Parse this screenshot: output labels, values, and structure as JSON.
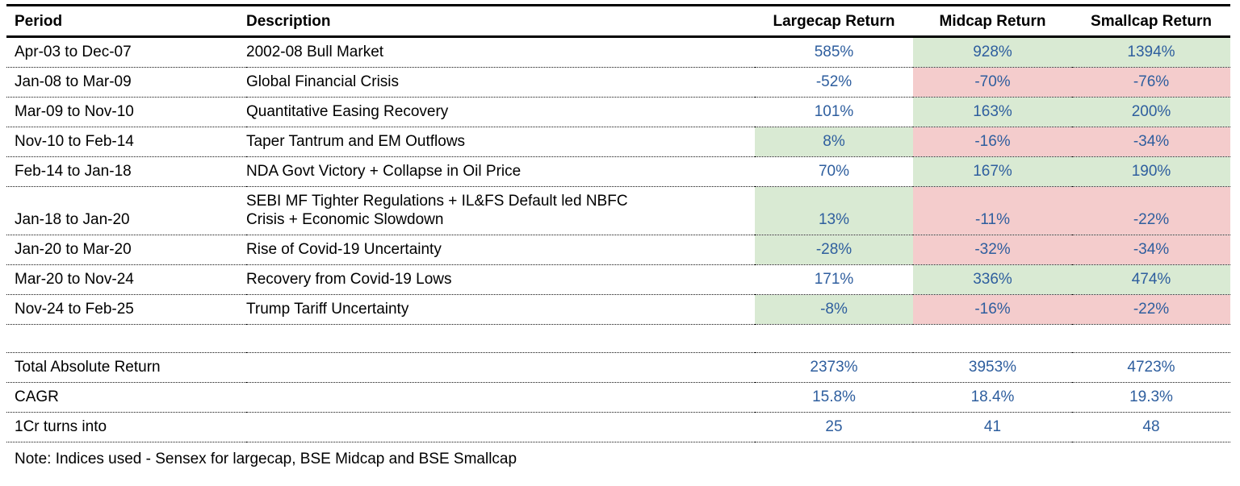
{
  "palette": {
    "green": "#d9ead3",
    "red": "#f4cccc",
    "value_blue": "#2e5e9e"
  },
  "chart_data": {
    "type": "table",
    "columns": [
      "Period",
      "Description",
      "Largecap Return",
      "Midcap Return",
      "Smallcap Return"
    ],
    "rows": [
      {
        "period": "Apr-03 to Dec-07",
        "description": "2002-08 Bull Market",
        "largecap": "585%",
        "midcap": "928%",
        "smallcap": "1394%",
        "shade_largecap": "none",
        "shade_midcap": "green",
        "shade_smallcap": "green"
      },
      {
        "period": "Jan-08 to Mar-09",
        "description": "Global Financial Crisis",
        "largecap": "-52%",
        "midcap": "-70%",
        "smallcap": "-76%",
        "shade_largecap": "none",
        "shade_midcap": "red",
        "shade_smallcap": "red"
      },
      {
        "period": "Mar-09 to Nov-10",
        "description": "Quantitative Easing Recovery",
        "largecap": "101%",
        "midcap": "163%",
        "smallcap": "200%",
        "shade_largecap": "none",
        "shade_midcap": "green",
        "shade_smallcap": "green"
      },
      {
        "period": "Nov-10 to Feb-14",
        "description": "Taper Tantrum and EM Outflows",
        "largecap": "8%",
        "midcap": "-16%",
        "smallcap": "-34%",
        "shade_largecap": "green",
        "shade_midcap": "red",
        "shade_smallcap": "red"
      },
      {
        "period": "Feb-14 to Jan-18",
        "description": "NDA Govt Victory + Collapse in Oil Price",
        "largecap": "70%",
        "midcap": "167%",
        "smallcap": "190%",
        "shade_largecap": "none",
        "shade_midcap": "green",
        "shade_smallcap": "green"
      },
      {
        "period": "Jan-18 to Jan-20",
        "description": "SEBI MF Tighter Regulations + IL&FS Default led NBFC\nCrisis + Economic Slowdown",
        "largecap": "13%",
        "midcap": "-11%",
        "smallcap": "-22%",
        "shade_largecap": "green",
        "shade_midcap": "red",
        "shade_smallcap": "red"
      },
      {
        "period": "Jan-20 to Mar-20",
        "description": "Rise of Covid-19 Uncertainty",
        "largecap": "-28%",
        "midcap": "-32%",
        "smallcap": "-34%",
        "shade_largecap": "green",
        "shade_midcap": "red",
        "shade_smallcap": "red"
      },
      {
        "period": "Mar-20 to Nov-24",
        "description": "Recovery from Covid-19 Lows",
        "largecap": "171%",
        "midcap": "336%",
        "smallcap": "474%",
        "shade_largecap": "none",
        "shade_midcap": "green",
        "shade_smallcap": "green"
      },
      {
        "period": "Nov-24 to Feb-25",
        "description": "Trump Tariff Uncertainty",
        "largecap": "-8%",
        "midcap": "-16%",
        "smallcap": "-22%",
        "shade_largecap": "green",
        "shade_midcap": "red",
        "shade_smallcap": "red"
      }
    ],
    "summary_rows": [
      {
        "label": "Total Absolute Return",
        "largecap": "2373%",
        "midcap": "3953%",
        "smallcap": "4723%"
      },
      {
        "label": "CAGR",
        "largecap": "15.8%",
        "midcap": "18.4%",
        "smallcap": "19.3%"
      },
      {
        "label": "1Cr turns into",
        "largecap": "25",
        "midcap": "41",
        "smallcap": "48"
      }
    ],
    "note": "Note: Indices used - Sensex for largecap, BSE Midcap and BSE Smallcap"
  }
}
